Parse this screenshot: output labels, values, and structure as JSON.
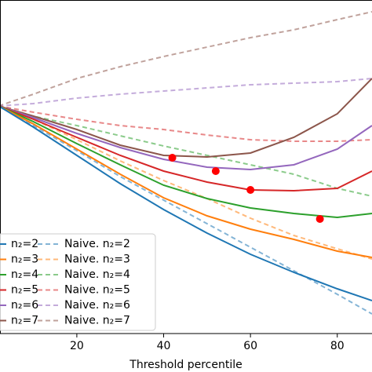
{
  "chart_data": {
    "type": "line",
    "x_label": "Threshold percentile",
    "x": [
      2,
      10,
      20,
      30,
      40,
      50,
      60,
      70,
      80,
      88
    ],
    "xlim": [
      2.3,
      88
    ],
    "xticks": [
      20,
      40,
      60,
      80
    ],
    "ylim": [
      0,
      425
    ],
    "legend": "lower left",
    "series": [
      {
        "name": "n₂=2",
        "color": "#1f77b4",
        "style": "solid",
        "values": [
          290,
          263,
          227,
          191,
          158,
          128,
          101,
          78,
          57,
          42
        ]
      },
      {
        "name": "n₂=3",
        "color": "#ff7f0e",
        "style": "solid",
        "values": [
          290,
          267,
          235,
          203,
          173,
          150,
          133,
          120,
          105,
          97
        ]
      },
      {
        "name": "n₂=4",
        "color": "#2ca02c",
        "style": "solid",
        "values": [
          290,
          270,
          242,
          215,
          189,
          172,
          160,
          153,
          148,
          153
        ]
      },
      {
        "name": "n₂=5",
        "color": "#d62728",
        "style": "solid",
        "values": [
          290,
          273,
          250,
          227,
          207,
          193,
          183,
          182,
          185,
          207
        ]
      },
      {
        "name": "n₂=6",
        "color": "#9467bd",
        "style": "solid",
        "values": [
          290,
          275,
          255,
          237,
          222,
          212,
          209,
          215,
          235,
          265
        ]
      },
      {
        "name": "n₂=7",
        "color": "#8c564b",
        "style": "solid",
        "values": [
          290,
          277,
          260,
          240,
          227,
          225,
          230,
          250,
          280,
          325
        ]
      },
      {
        "name": "Naive. n₂=2",
        "color": "#1f77b4",
        "style": "dashed",
        "values": [
          290,
          265,
          233,
          200,
          170,
          140,
          110,
          80,
          50,
          25
        ]
      },
      {
        "name": "Naive. n₂=3",
        "color": "#ff7f0e",
        "style": "dashed",
        "values": [
          290,
          273,
          247,
          220,
          195,
          172,
          147,
          125,
          108,
          95
        ]
      },
      {
        "name": "Naive. n₂=4",
        "color": "#2ca02c",
        "style": "dashed",
        "values": [
          290,
          277,
          265,
          252,
          239,
          227,
          215,
          203,
          185,
          175
        ]
      },
      {
        "name": "Naive. n₂=5",
        "color": "#d62728",
        "style": "dashed",
        "values": [
          290,
          282,
          273,
          265,
          260,
          253,
          247,
          245,
          245,
          247
        ]
      },
      {
        "name": "Naive. n₂=6",
        "color": "#9467bd",
        "style": "dashed",
        "values": [
          290,
          293,
          300,
          305,
          309,
          313,
          317,
          319,
          321,
          325
        ]
      },
      {
        "name": "Naive. n₂=7",
        "color": "#8c564b",
        "style": "dashed",
        "values": [
          290,
          305,
          325,
          340,
          353,
          365,
          377,
          387,
          400,
          410
        ]
      }
    ],
    "markers": {
      "color": "#ff0000",
      "x": [
        42,
        52,
        60,
        76
      ],
      "y": [
        224,
        207,
        183,
        146
      ]
    }
  }
}
